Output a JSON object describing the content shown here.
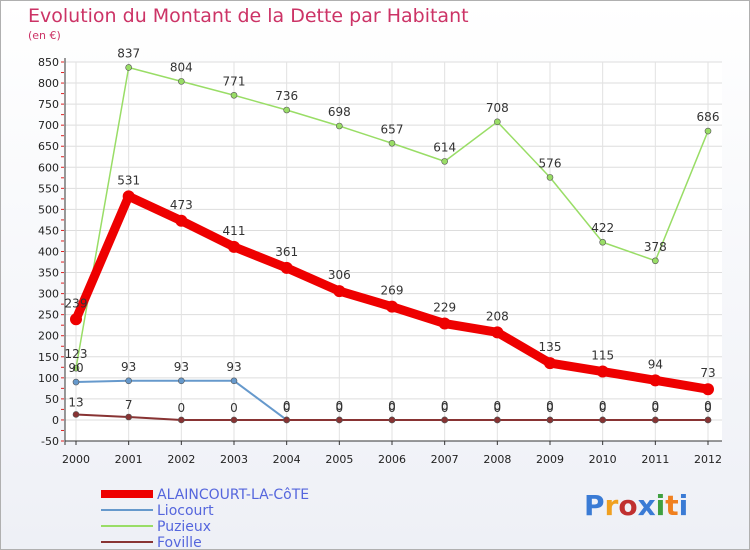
{
  "title": "Evolution du Montant de la Dette par Habitant",
  "unit": "(en €)",
  "logo": [
    "P",
    "r",
    "o",
    "x",
    "i",
    "t",
    "i"
  ],
  "logo_colors": [
    "#3a7bd5",
    "#f0a020",
    "#c03030",
    "#3a7bd5",
    "#40a040",
    "#f08020",
    "#3a7bd5"
  ],
  "chart_data": {
    "type": "line",
    "title": "Evolution du Montant de la Dette par Habitant",
    "ylabel": "(en €)",
    "xlabel": "",
    "x": [
      "2000",
      "2001",
      "2002",
      "2003",
      "2004",
      "2005",
      "2006",
      "2007",
      "2008",
      "2009",
      "2010",
      "2011",
      "2012"
    ],
    "ylim": [
      -50,
      850
    ],
    "yticks": [
      -50,
      0,
      50,
      100,
      150,
      200,
      250,
      300,
      350,
      400,
      450,
      500,
      550,
      600,
      650,
      700,
      750,
      800,
      850
    ],
    "grid": true,
    "legend_position": "bottom-left",
    "series": [
      {
        "name": "ALAINCOURT-LA-CôTE",
        "color": "#ee0000",
        "values": [
          239,
          531,
          473,
          411,
          361,
          306,
          269,
          229,
          208,
          135,
          115,
          94,
          73
        ],
        "labels": [
          "239",
          "531",
          "473",
          "411",
          "361",
          "306",
          "269",
          "229",
          "208",
          "135",
          "115",
          "94",
          "73"
        ]
      },
      {
        "name": "Liocourt",
        "color": "#6699cc",
        "values": [
          90,
          93,
          93,
          93,
          0,
          0,
          0,
          0,
          0,
          0,
          0,
          0,
          0
        ],
        "labels": [
          "90",
          "93",
          "93",
          "93",
          "0",
          "0",
          "0",
          "0",
          "0",
          "0",
          "0",
          "0",
          "0"
        ]
      },
      {
        "name": "Puzieux",
        "color": "#99dd66",
        "values": [
          123,
          837,
          804,
          771,
          736,
          698,
          657,
          614,
          708,
          576,
          422,
          378,
          686
        ],
        "labels": [
          "123",
          "837",
          "804",
          "771",
          "736",
          "698",
          "657",
          "614",
          "708",
          "576",
          "422",
          "378",
          "686"
        ]
      },
      {
        "name": "Foville",
        "color": "#883333",
        "values": [
          13,
          7,
          0,
          0,
          0,
          0,
          0,
          0,
          0,
          0,
          0,
          0,
          0
        ],
        "labels": [
          "13",
          "7",
          "0",
          "0",
          "0",
          "0",
          "0",
          "0",
          "0",
          "0",
          "0",
          "0",
          "0"
        ]
      }
    ]
  }
}
